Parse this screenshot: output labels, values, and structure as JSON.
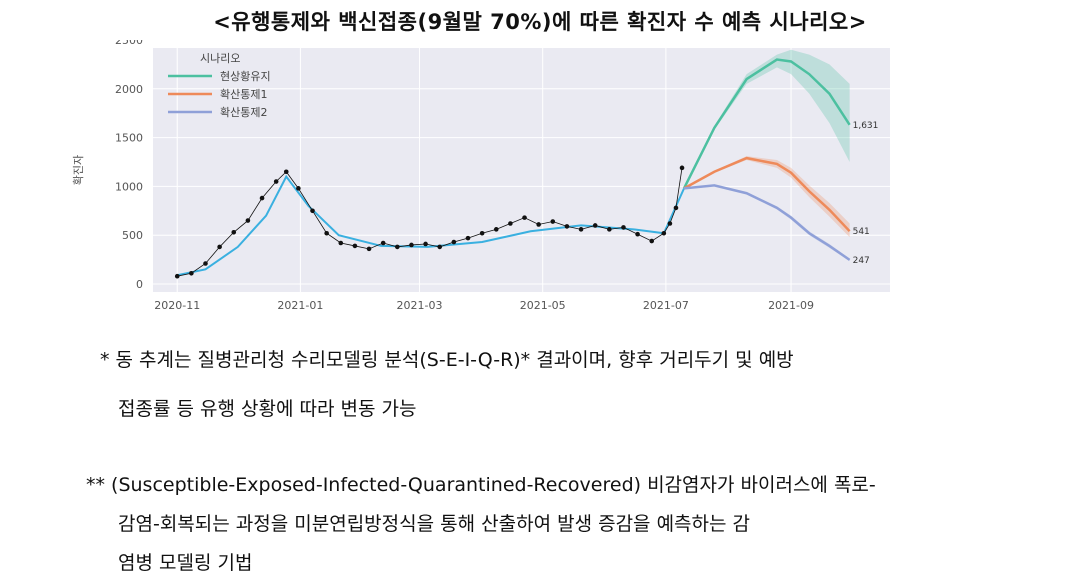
{
  "title": "<유행통제와 백신접종(9월말 70%)에 따른 확진자 수 예측 시나리오>",
  "notes": {
    "note1_line1": "* 동 추계는 질병관리청 수리모델링 분석(S-E-I-Q-R)* 결과이며, 향후 거리두기 및 예방",
    "note1_line2": "접종률 등 유행 상황에 따라 변동 가능",
    "note2_line1": "** (Susceptible-Exposed-Infected-Quarantined-Recovered) 비감염자가 바이러스에 폭로-",
    "note2_line2": "감염-회복되는 과정을 미분연립방정식을 통해 산출하여 발생 증감을 예측하는 감",
    "note2_line3": "염병 모델링 기법"
  },
  "chart_data": {
    "type": "line",
    "ylabel": "확진자",
    "xlabel": "",
    "ylim": [
      0,
      2500
    ],
    "yticks": [
      0,
      500,
      1000,
      1500,
      2000,
      2500
    ],
    "xticks": [
      "2020-11",
      "2021-01",
      "2021-03",
      "2021-05",
      "2021-07",
      "2021-09"
    ],
    "legend": {
      "title": "시나리오",
      "position": "top-left"
    },
    "grid": true,
    "colors": {
      "observed": "#111111",
      "fit": "#3ab0e0",
      "background": "#eaeaf2"
    },
    "observed": {
      "x": [
        "2020-11-01",
        "2020-11-08",
        "2020-11-15",
        "2020-11-22",
        "2020-11-29",
        "2020-12-06",
        "2020-12-13",
        "2020-12-20",
        "2020-12-25",
        "2020-12-31",
        "2021-01-07",
        "2021-01-14",
        "2021-01-21",
        "2021-01-28",
        "2021-02-04",
        "2021-02-11",
        "2021-02-18",
        "2021-02-25",
        "2021-03-04",
        "2021-03-11",
        "2021-03-18",
        "2021-03-25",
        "2021-04-01",
        "2021-04-08",
        "2021-04-15",
        "2021-04-22",
        "2021-04-29",
        "2021-05-06",
        "2021-05-13",
        "2021-05-20",
        "2021-05-27",
        "2021-06-03",
        "2021-06-10",
        "2021-06-17",
        "2021-06-24",
        "2021-06-30",
        "2021-07-03",
        "2021-07-06",
        "2021-07-09"
      ],
      "y": [
        80,
        110,
        210,
        380,
        530,
        650,
        880,
        1050,
        1150,
        980,
        750,
        520,
        420,
        390,
        360,
        420,
        380,
        400,
        410,
        380,
        430,
        470,
        520,
        560,
        620,
        680,
        610,
        640,
        590,
        560,
        600,
        560,
        580,
        510,
        440,
        520,
        620,
        780,
        1190
      ]
    },
    "fit": {
      "x": [
        "2020-11-01",
        "2020-11-15",
        "2020-12-01",
        "2020-12-15",
        "2020-12-25",
        "2021-01-05",
        "2021-01-20",
        "2021-02-10",
        "2021-03-05",
        "2021-04-01",
        "2021-04-25",
        "2021-05-20",
        "2021-06-15",
        "2021-06-30",
        "2021-07-10"
      ],
      "y": [
        90,
        150,
        380,
        700,
        1100,
        800,
        500,
        390,
        380,
        430,
        540,
        600,
        560,
        520,
        980
      ]
    },
    "series": [
      {
        "name": "현상황유지",
        "color": "#4cc0a0",
        "x": [
          "2021-07-10",
          "2021-07-25",
          "2021-08-10",
          "2021-08-25",
          "2021-09-01",
          "2021-09-10",
          "2021-09-20",
          "2021-09-30"
        ],
        "values": [
          980,
          1600,
          2100,
          2300,
          2280,
          2150,
          1950,
          1631
        ],
        "lower": [
          980,
          1580,
          2050,
          2220,
          2150,
          1950,
          1650,
          1250
        ],
        "upper": [
          980,
          1620,
          2150,
          2350,
          2400,
          2350,
          2250,
          2050
        ]
      },
      {
        "name": "확산통제1",
        "color": "#ee8a5a",
        "x": [
          "2021-07-10",
          "2021-07-25",
          "2021-08-10",
          "2021-08-25",
          "2021-09-01",
          "2021-09-10",
          "2021-09-20",
          "2021-09-30"
        ],
        "values": [
          980,
          1150,
          1290,
          1230,
          1140,
          950,
          760,
          541
        ],
        "lower": [
          980,
          1140,
          1270,
          1190,
          1090,
          890,
          690,
          480
        ],
        "upper": [
          980,
          1160,
          1310,
          1270,
          1190,
          1010,
          830,
          620
        ]
      },
      {
        "name": "확산통제2",
        "color": "#8fa0d8",
        "x": [
          "2021-07-10",
          "2021-07-25",
          "2021-08-10",
          "2021-08-25",
          "2021-09-01",
          "2021-09-10",
          "2021-09-20",
          "2021-09-30"
        ],
        "values": [
          980,
          1010,
          930,
          780,
          680,
          520,
          390,
          247
        ],
        "lower": [
          980,
          1005,
          920,
          765,
          660,
          500,
          370,
          235
        ],
        "upper": [
          980,
          1015,
          940,
          795,
          700,
          540,
          410,
          260
        ]
      }
    ],
    "end_labels": [
      "1,631",
      "541",
      "247"
    ]
  }
}
